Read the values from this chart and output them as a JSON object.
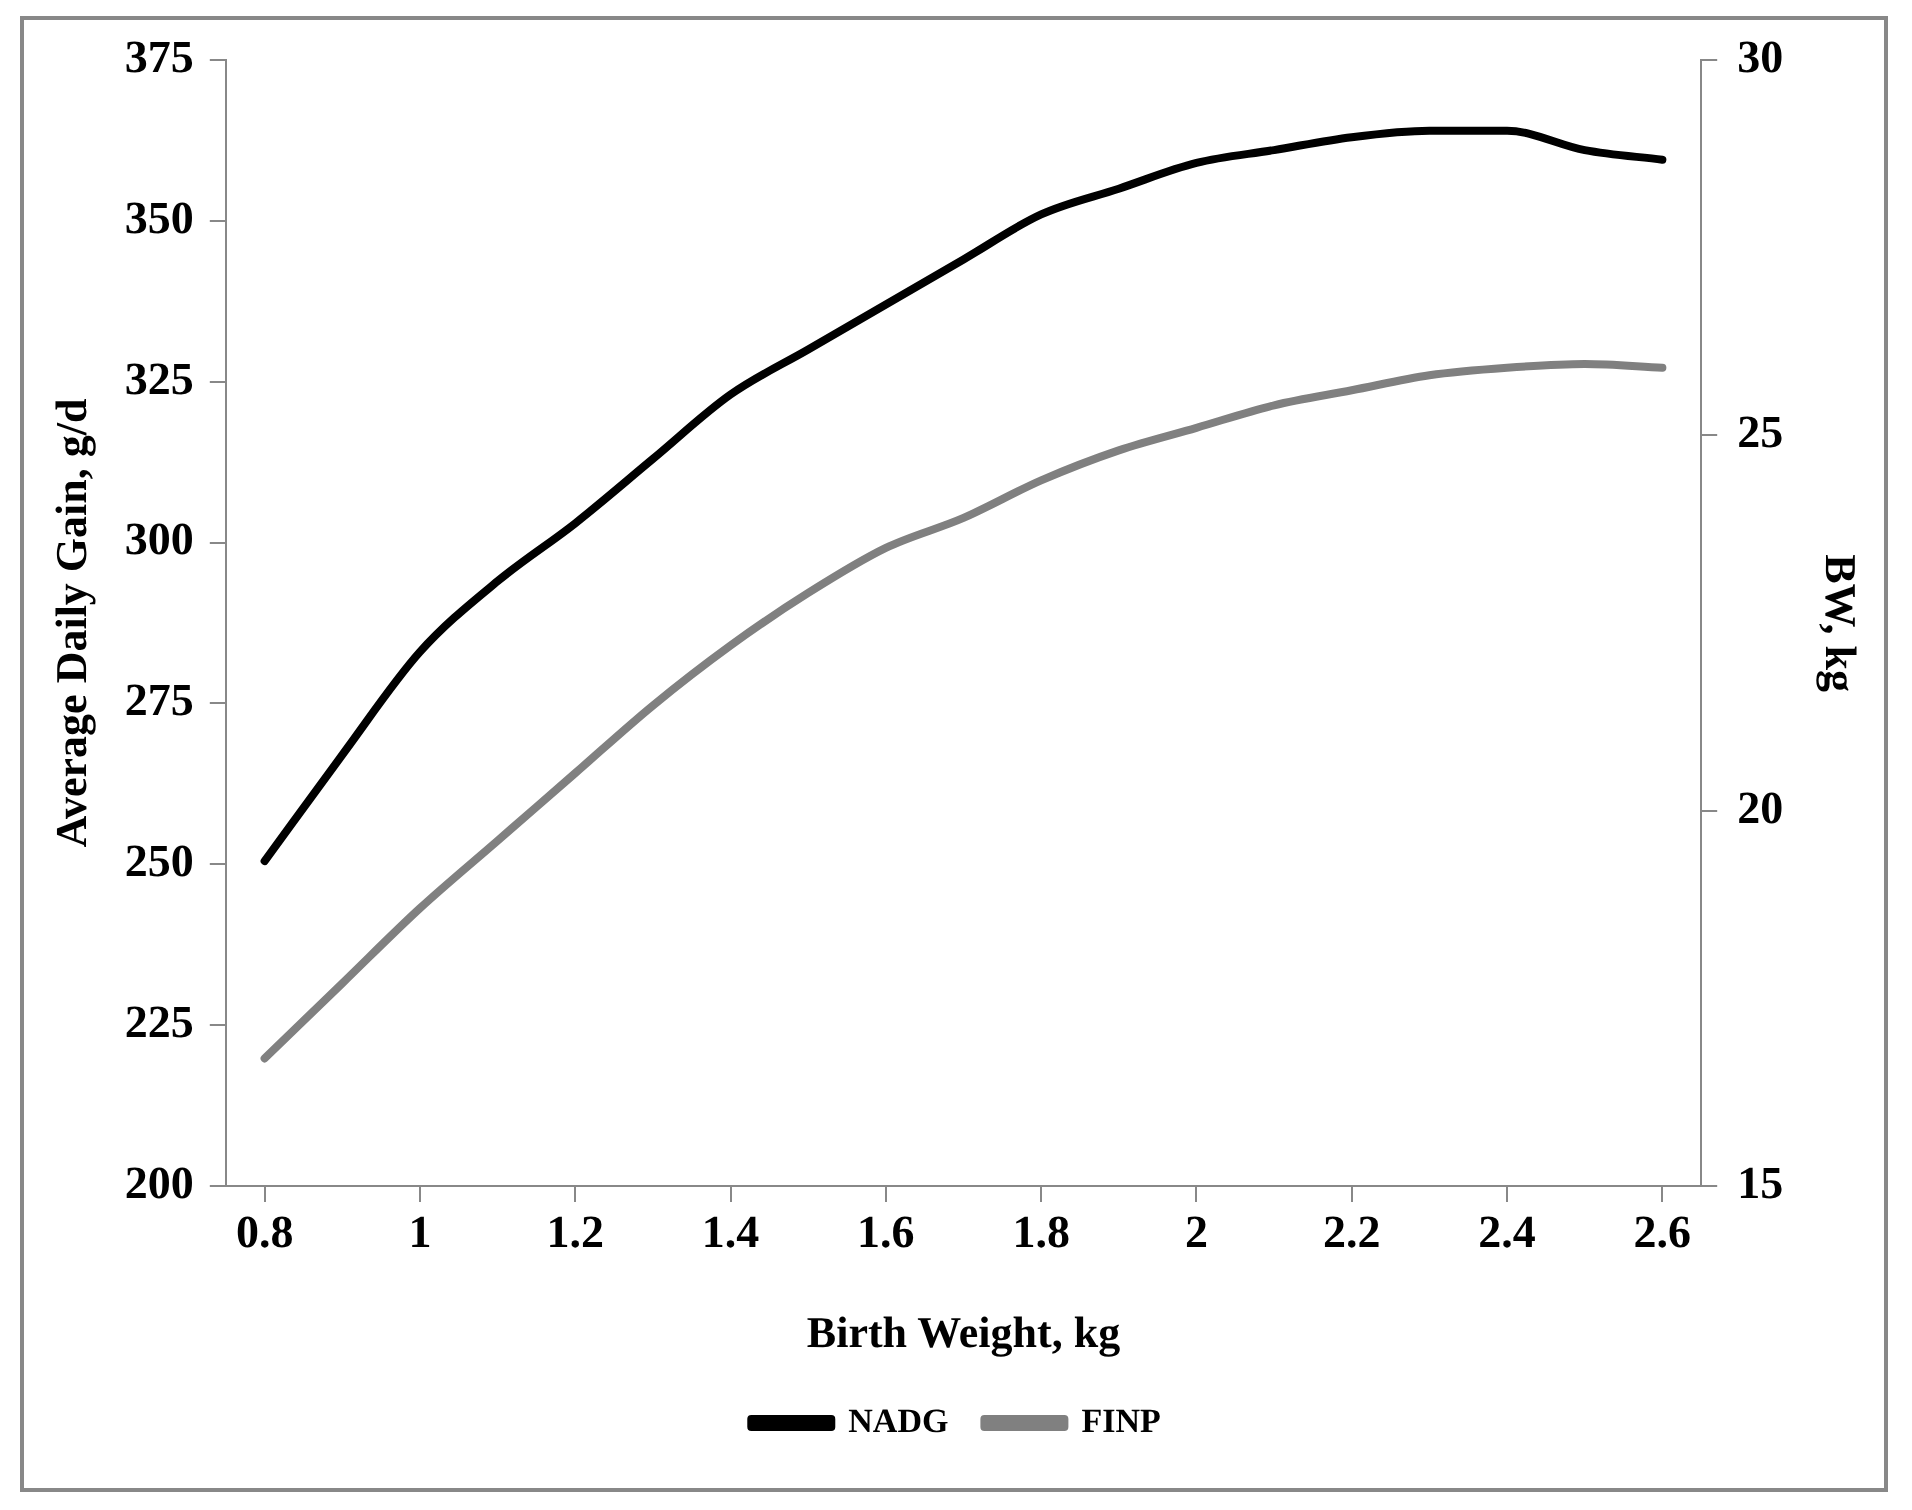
{
  "chart_data": {
    "type": "line",
    "xlabel": "Birth Weight, kg",
    "ylabel": "Average Daily Gain, g/d",
    "y2label": "BW, kg",
    "x": [
      0.8,
      0.9,
      1.0,
      1.1,
      1.2,
      1.3,
      1.4,
      1.5,
      1.6,
      1.7,
      1.8,
      1.9,
      2.0,
      2.1,
      2.2,
      2.3,
      2.4,
      2.5,
      2.6
    ],
    "series": [
      {
        "name": "NADG",
        "color": "#000000",
        "values": [
          250.5,
          267,
          283,
          294,
          303,
          313,
          323,
          330,
          337,
          344,
          351,
          355,
          359,
          361,
          363,
          364,
          364,
          361,
          359.5
        ]
      },
      {
        "name": "FINP",
        "color": "#808080",
        "axis": "y2",
        "values": [
          16.7,
          17.7,
          18.7,
          19.6,
          20.5,
          21.4,
          22.2,
          22.9,
          23.5,
          23.9,
          24.4,
          24.8,
          25.1,
          25.4,
          25.6,
          25.8,
          25.9,
          25.95,
          25.9
        ]
      }
    ],
    "xlim": [
      0.75,
      2.65
    ],
    "xticks": [
      0.8,
      1,
      1.2,
      1.4,
      1.6,
      1.8,
      2,
      2.2,
      2.4,
      2.6
    ],
    "ylim": [
      200,
      375
    ],
    "yticks": [
      200,
      225,
      250,
      275,
      300,
      325,
      350,
      375
    ],
    "y2lim": [
      15,
      30
    ],
    "y2ticks": [
      15,
      20,
      25,
      30
    ],
    "grid": false,
    "legend": "bottom",
    "marker": "none",
    "line_style": "solid"
  }
}
